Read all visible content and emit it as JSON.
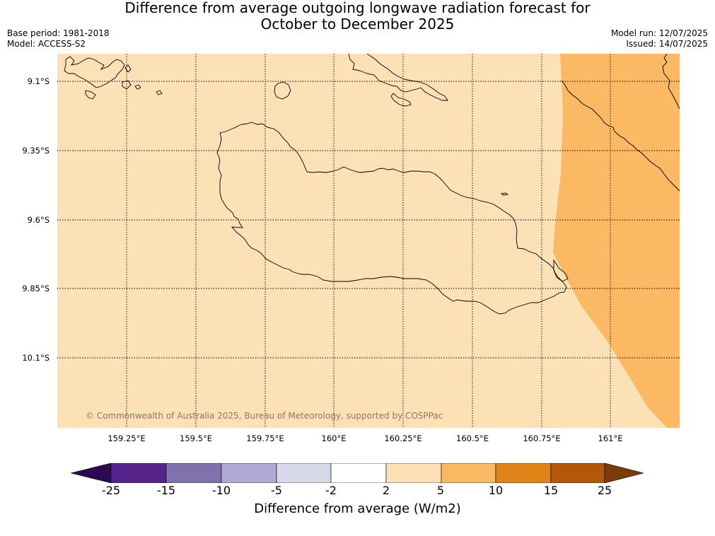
{
  "title": {
    "line1": "Difference from average outgoing longwave radiation forecast for",
    "line2": "October to December 2025"
  },
  "meta": {
    "base_period": "Base period: 1981-2018",
    "model": "Model: ACCESS-S2",
    "model_run": "Model run: 12/07/2025",
    "issued": "Issued: 14/07/2025"
  },
  "map": {
    "lat_labels": [
      "9.1°S",
      "9.35°S",
      "9.6°S",
      "9.85°S",
      "10.1°S"
    ],
    "lon_labels": [
      "159.25°E",
      "159.5°E",
      "159.75°E",
      "160°E",
      "160.25°E",
      "160.5°E",
      "160.75°E",
      "161°E"
    ],
    "copyright": "© Commonwealth of Australia 2025, Bureau of Meteorology, supported by COSPPac",
    "colors": {
      "background_fill": "#fce0b6",
      "anomaly_fill": "#fbb964",
      "gridline": "#000000",
      "coastline": "#000000"
    }
  },
  "colorbar": {
    "label": "Difference from average (W/m2)",
    "ticks": [
      "-25",
      "-15",
      "-10",
      "-5",
      "-2",
      "2",
      "5",
      "10",
      "15",
      "25"
    ],
    "colors": {
      "extend_low": "#2d0a4f",
      "bins": [
        "#56238c",
        "#8172ae",
        "#b0a9d3",
        "#d8d8eb",
        "#ffffff",
        "#fde0b6",
        "#fbb964",
        "#e18417",
        "#b35808"
      ],
      "extend_high": "#7a3d0a"
    }
  }
}
